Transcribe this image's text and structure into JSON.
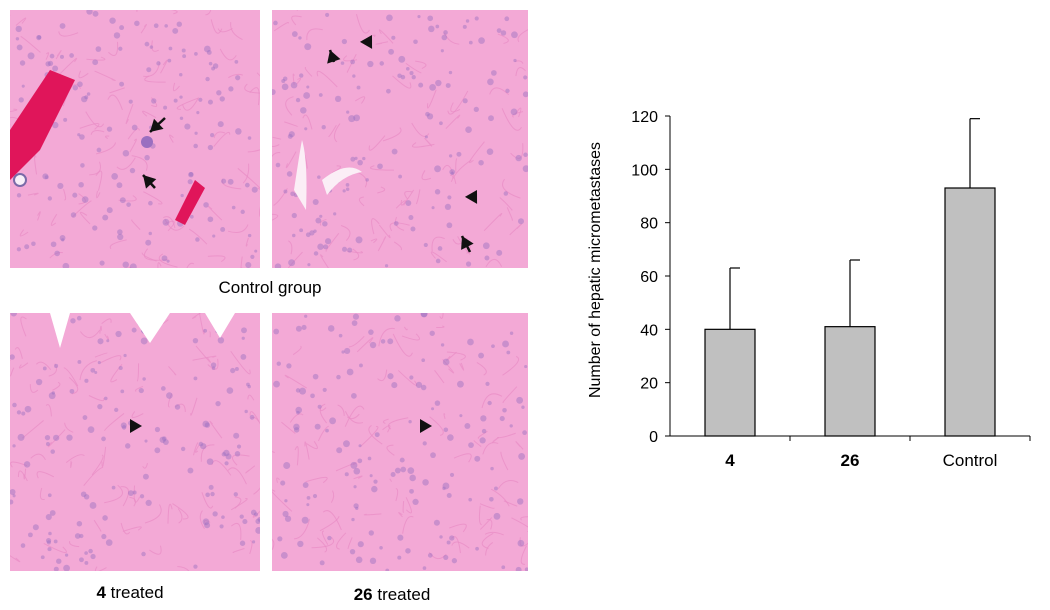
{
  "captions": {
    "control_group": "Control group",
    "treated_4_num": "4",
    "treated_4_text": " treated",
    "treated_26_num": "26",
    "treated_26_text": " treated"
  },
  "colors": {
    "tissue_base": "#f3a9d6",
    "tissue_dark": "#e88cc4",
    "nucleus": "#9a6fc0",
    "vessel_blood": "#e0155a",
    "bar_fill": "#c0c0c0"
  },
  "chart_data": {
    "type": "bar",
    "categories": [
      "4",
      "26",
      "Control"
    ],
    "category_bold": [
      true,
      true,
      false
    ],
    "values": [
      40,
      41,
      93
    ],
    "error_upper": [
      23,
      25,
      26
    ],
    "ylabel": "Number of hepatic micrometastases",
    "xlabel": "",
    "ylim": [
      0,
      120
    ],
    "yticks": [
      0,
      20,
      40,
      60,
      80,
      100,
      120
    ],
    "grid": false
  }
}
